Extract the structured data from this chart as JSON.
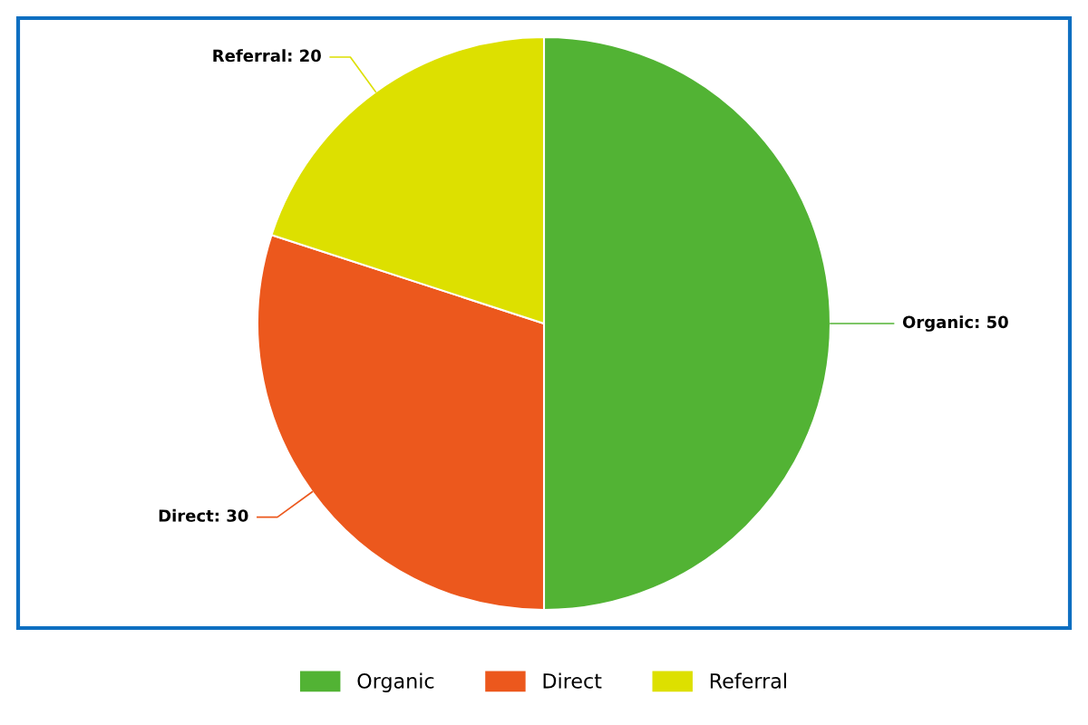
{
  "chart_data": {
    "type": "pie",
    "categories": [
      "Organic",
      "Direct",
      "Referral"
    ],
    "values": [
      50,
      30,
      20
    ],
    "colors": [
      "#52b334",
      "#ec581d",
      "#dde000"
    ],
    "value_labels": [
      "Organic: 50",
      "Direct: 30",
      "Referral: 20"
    ],
    "legend": "bottom"
  }
}
